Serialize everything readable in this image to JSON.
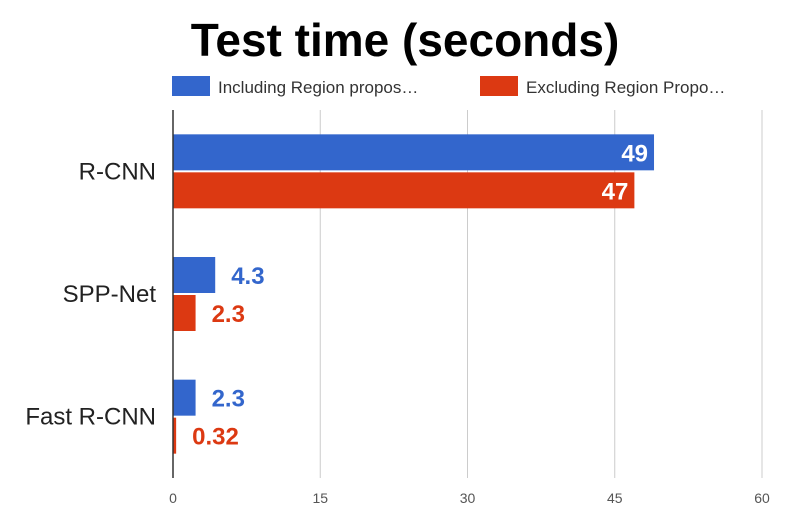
{
  "chart_data": {
    "type": "bar",
    "orientation": "horizontal",
    "title": "Test time (seconds)",
    "categories": [
      "R-CNN",
      "SPP-Net",
      "Fast R-CNN"
    ],
    "series": [
      {
        "name": "Including Region propos…",
        "color": "#3366cc",
        "values": [
          49,
          4.3,
          2.3
        ],
        "labels": [
          "49",
          "4.3",
          "2.3"
        ]
      },
      {
        "name": "Excluding Region Propo…",
        "color": "#dc3912",
        "values": [
          47,
          2.3,
          0.32
        ],
        "labels": [
          "47",
          "2.3",
          "0.32"
        ]
      }
    ],
    "xlim": [
      0,
      60
    ],
    "xticks": [
      0,
      15,
      30,
      45,
      60
    ],
    "xtick_labels": [
      "0",
      "15",
      "30",
      "45",
      "60"
    ],
    "grid": true,
    "legend_position": "top"
  }
}
